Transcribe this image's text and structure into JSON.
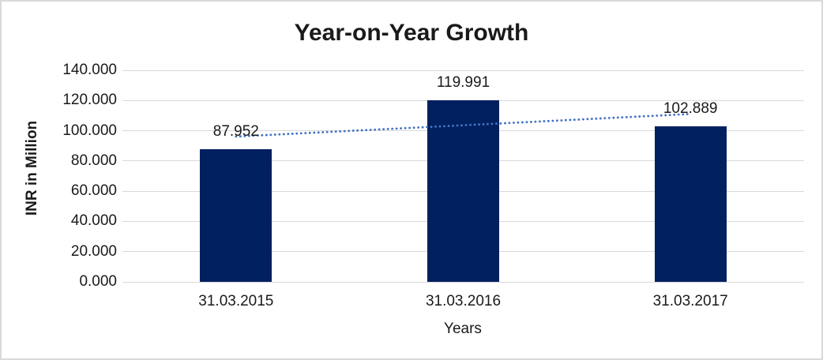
{
  "colors": {
    "background": "#ffffff",
    "border": "#d9d9d9",
    "gridline": "#d9d9d9",
    "text": "#1a1a1a",
    "bar": "#002060",
    "trendline": "#4472c4"
  },
  "chart_data": {
    "type": "bar",
    "title": "Year-on-Year Growth",
    "xlabel": "Years",
    "ylabel": "INR in Million",
    "categories": [
      "31.03.2015",
      "31.03.2016",
      "31.03.2017"
    ],
    "values": [
      87.952,
      119.991,
      102.889
    ],
    "data_labels": [
      "87.952",
      "119.991",
      "102.889"
    ],
    "ylim": [
      0,
      140
    ],
    "ytick_step": 20,
    "ytick_labels": [
      "0.000",
      "20.000",
      "40.000",
      "60.000",
      "80.000",
      "100.000",
      "120.000",
      "140.000"
    ],
    "grid": true,
    "legend": "none",
    "trendline": {
      "type": "linear",
      "style": "dotted",
      "endpoints": [
        96.143,
        111.079
      ]
    }
  }
}
